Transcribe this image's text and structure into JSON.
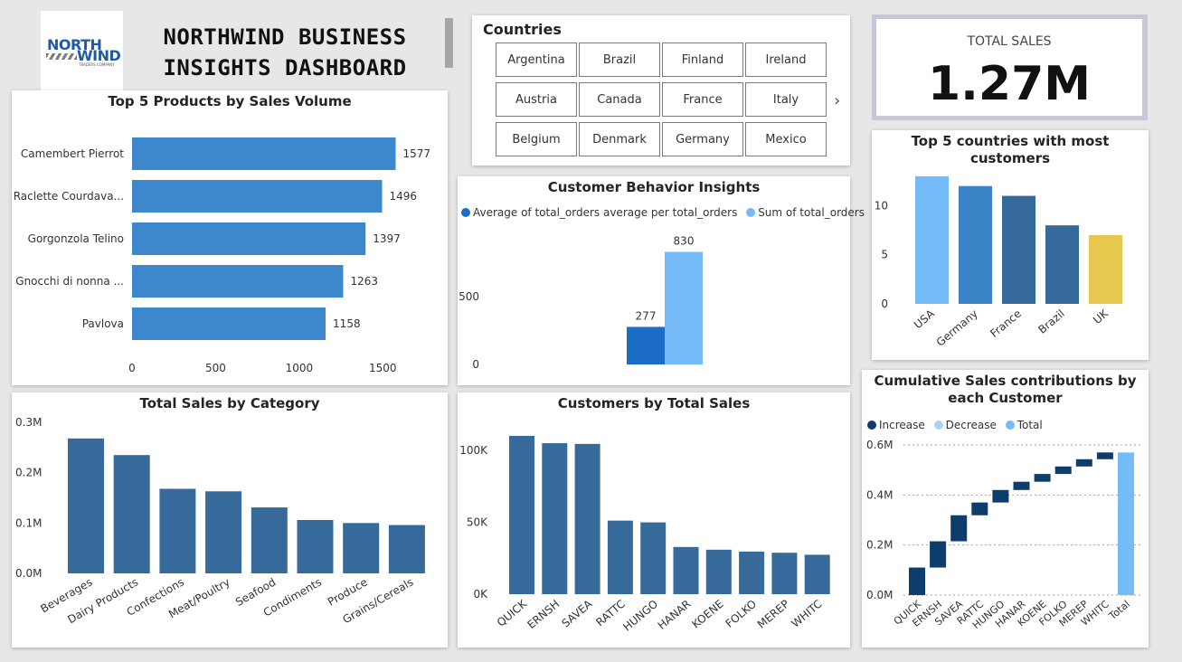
{
  "header": {
    "logo_word_1": "NORTH",
    "logo_word_2": "WIND",
    "logo_tagline": "TRADERS COMPANY",
    "title_line_1": "NORTHWIND BUSINESS",
    "title_line_2": "INSIGHTS DASHBOARD"
  },
  "slicer": {
    "title": "Countries",
    "items": [
      "Argentina",
      "Brazil",
      "Finland",
      "Ireland",
      "Austria",
      "Canada",
      "France",
      "Italy",
      "Belgium",
      "Denmark",
      "Germany",
      "Mexico"
    ],
    "next_label": "›"
  },
  "kpi": {
    "label": "TOTAL SALES",
    "value": "1.27M"
  },
  "colors": {
    "bar_blue": "#3d87cd",
    "dark_blue": "#356a9a",
    "mid_blue": "#3c84c8",
    "light_blue": "#75bbf8",
    "yellow": "#e6c84f",
    "navy": "#0d3d6b",
    "customer_avg": "#1a6cc4"
  },
  "chart_data": [
    {
      "id": "top-products",
      "type": "bar",
      "orientation": "horizontal",
      "title": "Top 5 Products by Sales Volume",
      "categories": [
        "Camembert Pierrot",
        "Raclette Courdava...",
        "Gorgonzola Telino",
        "Gnocchi di nonna ...",
        "Pavlova"
      ],
      "values": [
        1577,
        1496,
        1397,
        1263,
        1158
      ],
      "xticks": [
        0,
        500,
        1000,
        1500
      ],
      "xlim": [
        0,
        1650
      ],
      "data_labels": true
    },
    {
      "id": "customer-behavior",
      "type": "bar",
      "title": "Customer Behavior Insights",
      "series": [
        {
          "name": "Average of total_orders average per total_orders",
          "values": [
            277
          ]
        },
        {
          "name": "Sum of total_orders",
          "values": [
            830
          ]
        }
      ],
      "yticks": [
        0,
        500
      ],
      "ylim": [
        0,
        900
      ],
      "legend": "top",
      "data_labels": true
    },
    {
      "id": "top-countries",
      "type": "bar",
      "title": "Top 5 countries with most customers",
      "categories": [
        "USA",
        "Germany",
        "France",
        "Brazil",
        "UK"
      ],
      "values": [
        13,
        12,
        11,
        8,
        7
      ],
      "yticks": [
        0,
        5,
        10
      ],
      "ylim": [
        0,
        14
      ]
    },
    {
      "id": "sales-by-category",
      "type": "bar",
      "title": "Total Sales by Category",
      "categories": [
        "Beverages",
        "Dairy Products",
        "Confections",
        "Meat/Poultry",
        "Seafood",
        "Condiments",
        "Produce",
        "Grains/Cereals"
      ],
      "values": [
        0.268,
        0.235,
        0.168,
        0.163,
        0.131,
        0.106,
        0.1,
        0.096
      ],
      "yticks": [
        "0.0M",
        "0.1M",
        "0.2M",
        "0.3M"
      ],
      "ylim": [
        0,
        0.3
      ],
      "unit": "M"
    },
    {
      "id": "customers-by-sales",
      "type": "bar",
      "title": "Customers by Total Sales",
      "categories": [
        "QUICK",
        "ERNSH",
        "SAVEA",
        "RATTC",
        "HUNGO",
        "HANAR",
        "KOENE",
        "FOLKO",
        "MEREP",
        "WHITC"
      ],
      "values": [
        110000,
        104900,
        104400,
        51100,
        49900,
        32800,
        30900,
        29600,
        28800,
        27400
      ],
      "yticks": [
        "0K",
        "50K",
        "100K"
      ],
      "ylim": [
        0,
        115000
      ]
    },
    {
      "id": "cumulative-sales",
      "type": "waterfall",
      "title": "Cumulative Sales contributions by each Customer",
      "legend": [
        "Increase",
        "Decrease",
        "Total"
      ],
      "categories": [
        "QUICK",
        "ERNSH",
        "SAVEA",
        "RATTC",
        "HUNGO",
        "HANAR",
        "KOENE",
        "FOLKO",
        "MEREP",
        "WHITC",
        "Total"
      ],
      "values": [
        0.11,
        0.105,
        0.104,
        0.051,
        0.05,
        0.033,
        0.031,
        0.03,
        0.029,
        0.027,
        0.57
      ],
      "yticks": [
        "0.0M",
        "0.2M",
        "0.4M",
        "0.6M"
      ],
      "ylim": [
        0,
        0.6
      ]
    }
  ]
}
